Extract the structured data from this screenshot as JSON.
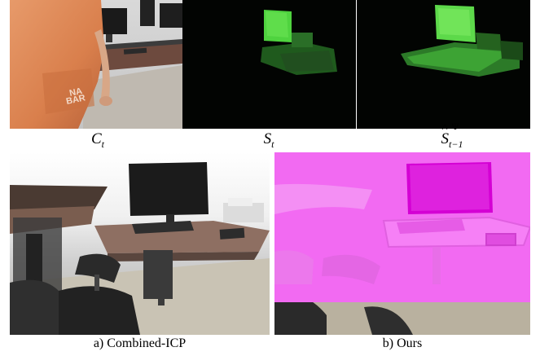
{
  "top_captions": {
    "c": "C",
    "c_sub": "t",
    "s": "S",
    "s_sub": "t",
    "shat": "S",
    "shat_sup": "Ψ",
    "shat_sub": "t−1"
  },
  "bottom_captions": {
    "left": "a) Combined-ICP",
    "right": "b) Ours"
  },
  "colors": {
    "segment_green": "#3fb23a",
    "pink_overlay": "#f26af2",
    "magenta": "#d400d4",
    "background": "#ffffff"
  }
}
